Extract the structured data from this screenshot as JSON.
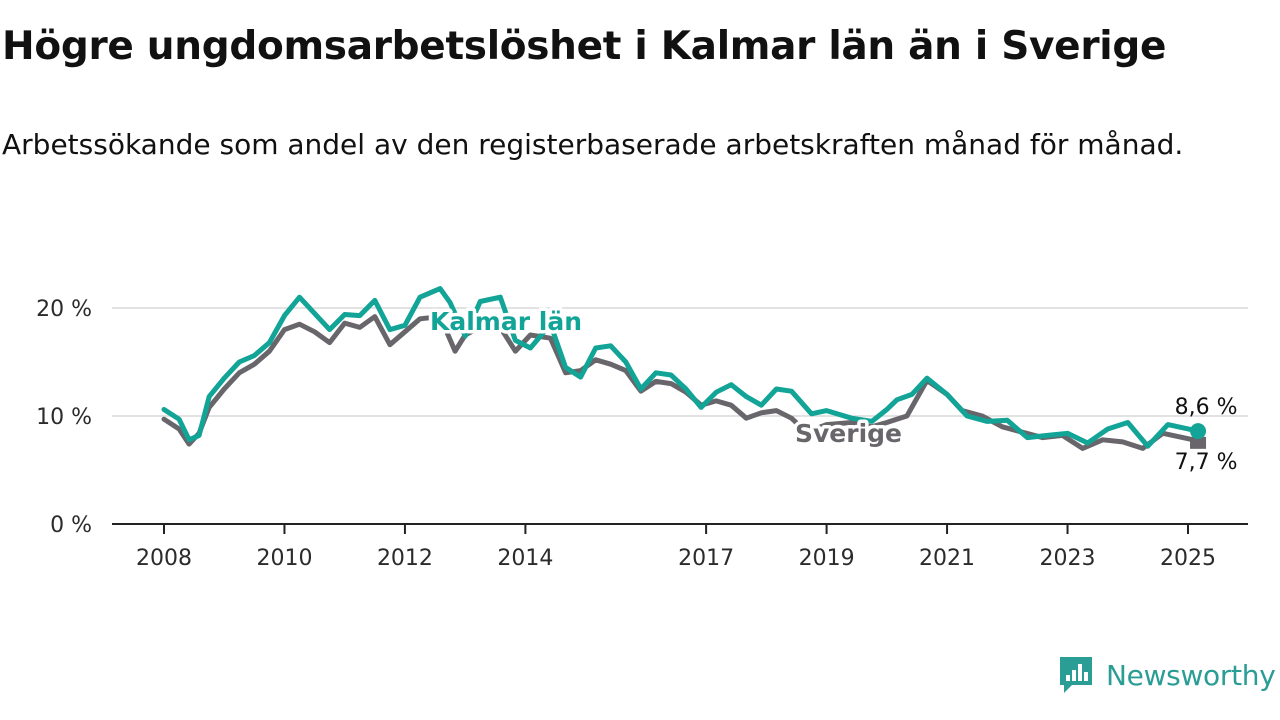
{
  "header": {
    "title": "Högre ungdomsarbetslöshet i Kalmar län än i Sverige",
    "subtitle": "Arbetssökande som andel av den registerbaserade arbetskraften månad för månad."
  },
  "brand": {
    "name": "Newsworthy",
    "color": "#2a9d94"
  },
  "chart_data": {
    "type": "line",
    "title": "Högre ungdomsarbetslöshet i Kalmar län än i Sverige",
    "subtitle": "Arbetssökande som andel av den registerbaserade arbetskraften månad för månad.",
    "x_ticks": [
      "2008",
      "2010",
      "2012",
      "2014",
      "2017",
      "2019",
      "2021",
      "2023",
      "2025"
    ],
    "y_ticks": [
      0,
      10,
      20
    ],
    "y_tick_labels": [
      "0 %",
      "10 %",
      "20 %"
    ],
    "ylim": [
      0,
      20
    ],
    "grid": true,
    "series": [
      {
        "name": "Kalmar län",
        "color": "#12a497",
        "end_label": "8,6 %",
        "points": [
          [
            "2008-01",
            10.6
          ],
          [
            "2008-04",
            9.7
          ],
          [
            "2008-06",
            7.8
          ],
          [
            "2008-08",
            8.2
          ],
          [
            "2008-10",
            11.8
          ],
          [
            "2009-01",
            13.5
          ],
          [
            "2009-04",
            15.0
          ],
          [
            "2009-07",
            15.6
          ],
          [
            "2009-10",
            16.8
          ],
          [
            "2010-01",
            19.3
          ],
          [
            "2010-04",
            21.0
          ],
          [
            "2010-07",
            19.5
          ],
          [
            "2010-10",
            18.0
          ],
          [
            "2011-01",
            19.4
          ],
          [
            "2011-04",
            19.3
          ],
          [
            "2011-07",
            20.7
          ],
          [
            "2011-10",
            18.0
          ],
          [
            "2012-01",
            18.4
          ],
          [
            "2012-04",
            21.0
          ],
          [
            "2012-08",
            21.8
          ],
          [
            "2012-10",
            20.5
          ],
          [
            "2013-01",
            17.4
          ],
          [
            "2013-04",
            20.6
          ],
          [
            "2013-08",
            21.0
          ],
          [
            "2013-11",
            17.0
          ],
          [
            "2014-02",
            16.3
          ],
          [
            "2014-06",
            18.5
          ],
          [
            "2014-09",
            14.5
          ],
          [
            "2014-12",
            13.6
          ],
          [
            "2015-03",
            16.3
          ],
          [
            "2015-06",
            16.5
          ],
          [
            "2015-09",
            15.0
          ],
          [
            "2015-12",
            12.5
          ],
          [
            "2016-03",
            14.0
          ],
          [
            "2016-06",
            13.8
          ],
          [
            "2016-09",
            12.5
          ],
          [
            "2016-12",
            10.8
          ],
          [
            "2017-03",
            12.2
          ],
          [
            "2017-06",
            12.9
          ],
          [
            "2017-09",
            11.8
          ],
          [
            "2017-12",
            11.0
          ],
          [
            "2018-03",
            12.5
          ],
          [
            "2018-06",
            12.3
          ],
          [
            "2018-10",
            10.2
          ],
          [
            "2019-01",
            10.5
          ],
          [
            "2019-06",
            9.8
          ],
          [
            "2019-10",
            9.5
          ],
          [
            "2020-01",
            10.6
          ],
          [
            "2020-03",
            11.5
          ],
          [
            "2020-06",
            12.0
          ],
          [
            "2020-09",
            13.5
          ],
          [
            "2021-01",
            12.0
          ],
          [
            "2021-05",
            10.0
          ],
          [
            "2021-09",
            9.5
          ],
          [
            "2022-01",
            9.6
          ],
          [
            "2022-05",
            8.0
          ],
          [
            "2022-09",
            8.2
          ],
          [
            "2023-01",
            8.4
          ],
          [
            "2023-05",
            7.5
          ],
          [
            "2023-09",
            8.8
          ],
          [
            "2024-01",
            9.4
          ],
          [
            "2024-05",
            7.2
          ],
          [
            "2024-09",
            9.2
          ],
          [
            "2025-03",
            8.6
          ]
        ]
      },
      {
        "name": "Sverige",
        "color": "#68666b",
        "end_label": "7,7 %",
        "points": [
          [
            "2008-01",
            9.7
          ],
          [
            "2008-04",
            8.8
          ],
          [
            "2008-06",
            7.4
          ],
          [
            "2008-08",
            8.4
          ],
          [
            "2008-10",
            10.8
          ],
          [
            "2009-01",
            12.5
          ],
          [
            "2009-04",
            14.0
          ],
          [
            "2009-07",
            14.8
          ],
          [
            "2009-10",
            16.0
          ],
          [
            "2010-01",
            18.0
          ],
          [
            "2010-04",
            18.5
          ],
          [
            "2010-07",
            17.8
          ],
          [
            "2010-10",
            16.8
          ],
          [
            "2011-01",
            18.6
          ],
          [
            "2011-04",
            18.2
          ],
          [
            "2011-07",
            19.2
          ],
          [
            "2011-10",
            16.6
          ],
          [
            "2012-01",
            17.8
          ],
          [
            "2012-04",
            19.0
          ],
          [
            "2012-08",
            19.2
          ],
          [
            "2012-11",
            16.0
          ],
          [
            "2013-01",
            17.5
          ],
          [
            "2013-05",
            18.5
          ],
          [
            "2013-08",
            18.2
          ],
          [
            "2013-11",
            16.0
          ],
          [
            "2014-02",
            17.5
          ],
          [
            "2014-06",
            17.2
          ],
          [
            "2014-09",
            14.0
          ],
          [
            "2014-12",
            14.2
          ],
          [
            "2015-03",
            15.2
          ],
          [
            "2015-06",
            14.8
          ],
          [
            "2015-09",
            14.2
          ],
          [
            "2015-12",
            12.3
          ],
          [
            "2016-03",
            13.2
          ],
          [
            "2016-06",
            13.0
          ],
          [
            "2016-09",
            12.2
          ],
          [
            "2016-12",
            11.0
          ],
          [
            "2017-03",
            11.4
          ],
          [
            "2017-06",
            11.0
          ],
          [
            "2017-09",
            9.8
          ],
          [
            "2017-12",
            10.3
          ],
          [
            "2018-03",
            10.5
          ],
          [
            "2018-06",
            9.8
          ],
          [
            "2018-09",
            8.5
          ],
          [
            "2019-01",
            9.2
          ],
          [
            "2019-06",
            9.4
          ],
          [
            "2019-10",
            9.0
          ],
          [
            "2020-01",
            9.4
          ],
          [
            "2020-05",
            10.0
          ],
          [
            "2020-09",
            13.3
          ],
          [
            "2021-01",
            12.0
          ],
          [
            "2021-04",
            10.5
          ],
          [
            "2021-08",
            10.0
          ],
          [
            "2021-12",
            9.0
          ],
          [
            "2022-04",
            8.5
          ],
          [
            "2022-08",
            8.0
          ],
          [
            "2022-12",
            8.2
          ],
          [
            "2023-04",
            7.0
          ],
          [
            "2023-08",
            7.8
          ],
          [
            "2023-12",
            7.6
          ],
          [
            "2024-04",
            7.0
          ],
          [
            "2024-08",
            8.4
          ],
          [
            "2025-03",
            7.7
          ]
        ]
      }
    ]
  }
}
